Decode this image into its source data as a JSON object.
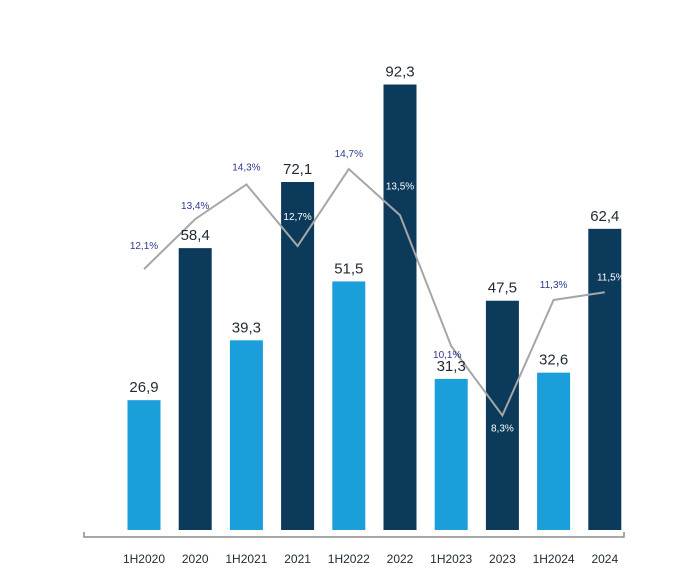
{
  "chart_data": {
    "type": "bar",
    "categories": [
      "1H2020",
      "2020",
      "1H2021",
      "2021",
      "1H2022",
      "2022",
      "1H2023",
      "2023",
      "1H2024",
      "2024"
    ],
    "bar_labels": [
      "26,9",
      "58,4",
      "39,3",
      "72,1",
      "51,5",
      "92,3",
      "31,3",
      "47,5",
      "32,6",
      "62,4"
    ],
    "series": [
      {
        "values": [
          26.9,
          58.4,
          39.3,
          72.1,
          51.5,
          92.3,
          31.3,
          47.5,
          32.6,
          62.4
        ]
      },
      {
        "type": "line",
        "values": [
          12.1,
          13.4,
          14.3,
          12.7,
          14.7,
          13.5,
          10.1,
          8.3,
          11.3,
          11.5
        ],
        "labels": [
          "12,1%",
          "13,4%",
          "14,3%",
          "12,7%",
          "14,7%",
          "13,5%",
          "10,1%",
          "8,3%",
          "11,3%",
          "11,5%"
        ]
      }
    ],
    "ylim": [
      0,
      100
    ],
    "line_ylim": [
      0,
      20
    ],
    "grid": false,
    "legend": "none",
    "colors": {
      "half_year_bar": "#1a9fdb",
      "full_year_bar": "#0b3a5b",
      "line": "#a6a6a6",
      "pct_text_dark": "#2b3990",
      "pct_text_light": "#ffffff",
      "axis": "#8c8c8c"
    }
  }
}
